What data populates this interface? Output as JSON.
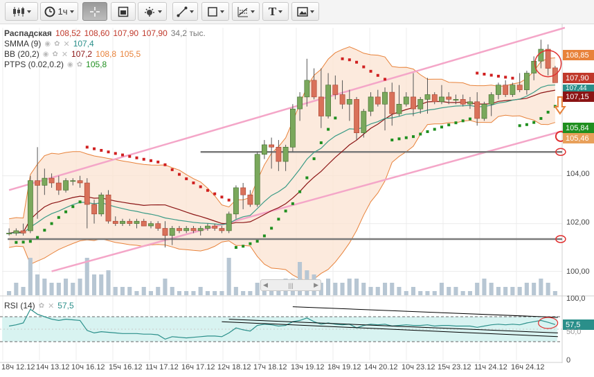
{
  "toolbar": {
    "buttons": [
      {
        "id": "chart-type",
        "icon": "candlestick-icon",
        "label": ""
      },
      {
        "id": "interval",
        "icon": "clock-icon",
        "label": "1ч"
      },
      {
        "id": "crosshair",
        "icon": "crosshair-icon",
        "label": ""
      },
      {
        "id": "chart-area",
        "icon": "area-icon",
        "label": ""
      },
      {
        "id": "indicators",
        "icon": "indicators-icon",
        "label": ""
      },
      {
        "id": "draw-line",
        "icon": "line-tool-icon",
        "label": ""
      },
      {
        "id": "draw-shape",
        "icon": "shape-tool-icon",
        "label": ""
      },
      {
        "id": "draw-fib",
        "icon": "fibonacci-icon",
        "label": ""
      },
      {
        "id": "draw-text",
        "icon": "text-tool-icon",
        "label": "T"
      },
      {
        "id": "snapshot",
        "icon": "image-icon",
        "label": ""
      }
    ]
  },
  "legend": {
    "main": {
      "name": "Распадская",
      "open": "108,52",
      "high": "108,60",
      "low": "107,90",
      "close": "107,90",
      "volume": "34,2 тыс."
    },
    "smma": {
      "name": "SMMA (9)",
      "value": "107,4"
    },
    "bb": {
      "name": "BB (20,2)",
      "v1": "107,2",
      "v2": "108,8",
      "v3": "105,5"
    },
    "ptps": {
      "name": "PTPS (0.02,0.2)",
      "value": "105,8"
    },
    "rsi": {
      "name": "RSI (14)",
      "value": "57,5"
    }
  },
  "price_tags": [
    {
      "label": "108,85",
      "color": "#e8823a"
    },
    {
      "label": "107,90",
      "color": "#c0392b"
    },
    {
      "label": "107,44",
      "color": "#2a8f8a"
    },
    {
      "label": "107,15",
      "color": "#8b1414"
    },
    {
      "label": "105,84",
      "color": "#1f8f1f"
    },
    {
      "label": "105,46",
      "color": "#e8a05a"
    },
    {
      "label": "57,5",
      "color": "#2a8f8a"
    }
  ],
  "chart_data": {
    "type": "candlestick",
    "ylim": [
      99.0,
      110.2
    ],
    "y_ticks": [
      "104,00",
      "102,00",
      "100,00"
    ],
    "rsi_ticks": [
      "100,0",
      "50,0",
      "0"
    ],
    "rsi_ylim": [
      0,
      100
    ],
    "x_tick_labels": [
      "18ч 12.12",
      "14ч 13.12",
      "10ч 16.12",
      "15ч 16.12",
      "11ч 17.12",
      "16ч 17.12",
      "12ч 18.12",
      "17ч 18.12",
      "13ч 19.12",
      "18ч 19.12",
      "14ч 20.12",
      "10ч 23.12",
      "15ч 23.12",
      "11ч 24.12",
      "16ч 24.12"
    ],
    "candles": [
      {
        "o": 101.6,
        "h": 101.8,
        "l": 101.5,
        "c": 101.6
      },
      {
        "o": 101.6,
        "h": 101.8,
        "l": 101.5,
        "c": 101.7
      },
      {
        "o": 101.7,
        "h": 102.0,
        "l": 101.5,
        "c": 101.6
      },
      {
        "o": 101.7,
        "h": 104.0,
        "l": 101.6,
        "c": 103.8
      },
      {
        "o": 103.8,
        "h": 105.2,
        "l": 102.2,
        "c": 103.6
      },
      {
        "o": 103.6,
        "h": 104.3,
        "l": 103.2,
        "c": 103.9
      },
      {
        "o": 103.9,
        "h": 104.1,
        "l": 103.5,
        "c": 103.7
      },
      {
        "o": 103.7,
        "h": 104.0,
        "l": 103.2,
        "c": 103.4
      },
      {
        "o": 103.4,
        "h": 103.9,
        "l": 103.3,
        "c": 103.8
      },
      {
        "o": 103.8,
        "h": 103.9,
        "l": 103.6,
        "c": 103.8
      },
      {
        "o": 103.8,
        "h": 104.0,
        "l": 103.5,
        "c": 103.7
      },
      {
        "o": 103.7,
        "h": 103.9,
        "l": 101.8,
        "c": 102.8
      },
      {
        "o": 102.8,
        "h": 103.0,
        "l": 102.0,
        "c": 102.4
      },
      {
        "o": 102.4,
        "h": 103.3,
        "l": 102.3,
        "c": 103.2
      },
      {
        "o": 103.2,
        "h": 103.4,
        "l": 102.0,
        "c": 102.1
      },
      {
        "o": 102.1,
        "h": 102.3,
        "l": 101.9,
        "c": 102.0
      },
      {
        "o": 102.0,
        "h": 102.2,
        "l": 101.9,
        "c": 102.1
      },
      {
        "o": 102.1,
        "h": 102.2,
        "l": 101.9,
        "c": 102.0
      },
      {
        "o": 102.0,
        "h": 102.2,
        "l": 101.8,
        "c": 102.1
      },
      {
        "o": 102.1,
        "h": 102.2,
        "l": 101.9,
        "c": 101.9
      },
      {
        "o": 101.9,
        "h": 102.1,
        "l": 101.8,
        "c": 102.0
      },
      {
        "o": 102.0,
        "h": 102.1,
        "l": 101.7,
        "c": 101.8
      },
      {
        "o": 101.8,
        "h": 102.1,
        "l": 101.0,
        "c": 101.5
      },
      {
        "o": 101.5,
        "h": 101.9,
        "l": 101.1,
        "c": 101.8
      },
      {
        "o": 101.8,
        "h": 101.9,
        "l": 101.6,
        "c": 101.7
      },
      {
        "o": 101.7,
        "h": 101.9,
        "l": 101.6,
        "c": 101.8
      },
      {
        "o": 101.8,
        "h": 101.9,
        "l": 101.6,
        "c": 101.7
      },
      {
        "o": 101.7,
        "h": 101.9,
        "l": 101.5,
        "c": 101.8
      },
      {
        "o": 101.8,
        "h": 102.0,
        "l": 101.7,
        "c": 101.9
      },
      {
        "o": 101.9,
        "h": 102.0,
        "l": 101.7,
        "c": 101.8
      },
      {
        "o": 101.8,
        "h": 101.9,
        "l": 101.6,
        "c": 101.7
      },
      {
        "o": 101.7,
        "h": 102.5,
        "l": 101.6,
        "c": 102.4
      },
      {
        "o": 102.4,
        "h": 103.6,
        "l": 102.2,
        "c": 103.5
      },
      {
        "o": 103.5,
        "h": 103.7,
        "l": 102.6,
        "c": 103.2
      },
      {
        "o": 103.2,
        "h": 103.4,
        "l": 102.7,
        "c": 102.8
      },
      {
        "o": 102.8,
        "h": 105.0,
        "l": 102.7,
        "c": 104.9
      },
      {
        "o": 104.9,
        "h": 105.5,
        "l": 104.7,
        "c": 105.3
      },
      {
        "o": 105.3,
        "h": 105.6,
        "l": 104.3,
        "c": 105.2
      },
      {
        "o": 105.2,
        "h": 105.5,
        "l": 104.2,
        "c": 104.6
      },
      {
        "o": 104.6,
        "h": 105.3,
        "l": 104.2,
        "c": 105.2
      },
      {
        "o": 105.2,
        "h": 107.0,
        "l": 105.0,
        "c": 106.8
      },
      {
        "o": 106.8,
        "h": 107.5,
        "l": 106.3,
        "c": 107.3
      },
      {
        "o": 107.3,
        "h": 108.9,
        "l": 106.9,
        "c": 108.0
      },
      {
        "o": 108.0,
        "h": 108.5,
        "l": 107.2,
        "c": 107.3
      },
      {
        "o": 107.3,
        "h": 108.5,
        "l": 106.0,
        "c": 106.5
      },
      {
        "o": 106.5,
        "h": 108.3,
        "l": 106.4,
        "c": 107.8
      },
      {
        "o": 107.8,
        "h": 108.2,
        "l": 107.2,
        "c": 107.4
      },
      {
        "o": 107.4,
        "h": 108.0,
        "l": 106.8,
        "c": 107.0
      },
      {
        "o": 107.0,
        "h": 107.6,
        "l": 106.3,
        "c": 107.2
      },
      {
        "o": 107.2,
        "h": 107.3,
        "l": 105.5,
        "c": 105.8
      },
      {
        "o": 105.8,
        "h": 106.8,
        "l": 105.6,
        "c": 106.7
      },
      {
        "o": 106.7,
        "h": 107.5,
        "l": 106.5,
        "c": 107.3
      },
      {
        "o": 107.3,
        "h": 107.6,
        "l": 106.9,
        "c": 107.0
      },
      {
        "o": 107.0,
        "h": 107.7,
        "l": 105.9,
        "c": 107.5
      },
      {
        "o": 107.5,
        "h": 107.9,
        "l": 106.1,
        "c": 106.6
      },
      {
        "o": 106.6,
        "h": 107.8,
        "l": 106.5,
        "c": 107.0
      },
      {
        "o": 107.0,
        "h": 107.5,
        "l": 106.9,
        "c": 107.3
      },
      {
        "o": 107.3,
        "h": 108.3,
        "l": 106.5,
        "c": 106.8
      },
      {
        "o": 106.8,
        "h": 107.3,
        "l": 106.6,
        "c": 107.2
      },
      {
        "o": 107.2,
        "h": 108.1,
        "l": 106.6,
        "c": 107.4
      },
      {
        "o": 107.4,
        "h": 107.5,
        "l": 107.0,
        "c": 107.1
      },
      {
        "o": 107.1,
        "h": 107.8,
        "l": 107.0,
        "c": 107.3
      },
      {
        "o": 107.3,
        "h": 107.5,
        "l": 107.0,
        "c": 107.2
      },
      {
        "o": 107.2,
        "h": 107.4,
        "l": 107.0,
        "c": 107.2
      },
      {
        "o": 107.2,
        "h": 107.4,
        "l": 106.9,
        "c": 107.0
      },
      {
        "o": 107.0,
        "h": 107.3,
        "l": 106.8,
        "c": 107.1
      },
      {
        "o": 107.1,
        "h": 107.5,
        "l": 106.1,
        "c": 106.4
      },
      {
        "o": 106.4,
        "h": 107.1,
        "l": 106.3,
        "c": 107.0
      },
      {
        "o": 107.0,
        "h": 107.5,
        "l": 106.5,
        "c": 107.4
      },
      {
        "o": 107.4,
        "h": 107.9,
        "l": 107.2,
        "c": 107.8
      },
      {
        "o": 107.8,
        "h": 108.0,
        "l": 107.3,
        "c": 107.4
      },
      {
        "o": 107.4,
        "h": 107.9,
        "l": 107.3,
        "c": 107.8
      },
      {
        "o": 107.8,
        "h": 108.3,
        "l": 107.5,
        "c": 107.6
      },
      {
        "o": 107.6,
        "h": 108.4,
        "l": 107.4,
        "c": 108.3
      },
      {
        "o": 108.3,
        "h": 109.0,
        "l": 108.0,
        "c": 108.8
      },
      {
        "o": 108.8,
        "h": 109.7,
        "l": 108.5,
        "c": 109.3
      },
      {
        "o": 109.3,
        "h": 109.5,
        "l": 108.2,
        "c": 108.5
      },
      {
        "o": 108.52,
        "h": 108.6,
        "l": 107.9,
        "c": 107.9
      }
    ],
    "volume_fraction": [
      0.1,
      0.3,
      0.2,
      0.9,
      0.5,
      0.4,
      0.3,
      0.3,
      0.4,
      0.3,
      0.4,
      0.9,
      0.5,
      0.5,
      0.6,
      0.2,
      0.2,
      0.2,
      0.1,
      0.2,
      0.1,
      0.2,
      0.4,
      0.2,
      0.1,
      0.1,
      0.1,
      0.2,
      0.1,
      0.1,
      0.1,
      0.9,
      0.2,
      0.1,
      0.1,
      0.3,
      0.2,
      0.3,
      0.3,
      0.4,
      0.4,
      0.8,
      0.6,
      0.5,
      0.3,
      0.4,
      0.3,
      0.3,
      0.4,
      0.4,
      0.3,
      0.2,
      0.2,
      0.3,
      0.3,
      0.2,
      0.1,
      0.2,
      0.1,
      0.1,
      0.1,
      0.3,
      0.2,
      0.2,
      0.1,
      0.1,
      0.3,
      0.4,
      0.3,
      0.2,
      0.2,
      0.2,
      0.2,
      0.3,
      0.3,
      0.4,
      0.3,
      0.1
    ],
    "rsi_values": [
      55,
      57,
      60,
      82,
      74,
      70,
      66,
      64,
      66,
      65,
      64,
      48,
      44,
      46,
      45,
      44,
      43,
      43,
      43,
      42,
      42,
      41,
      34,
      38,
      37,
      36,
      37,
      38,
      39,
      39,
      38,
      44,
      52,
      49,
      47,
      56,
      58,
      57,
      55,
      56,
      62,
      64,
      68,
      62,
      58,
      60,
      58,
      57,
      58,
      52,
      56,
      58,
      57,
      58,
      55,
      56,
      57,
      56,
      56,
      57,
      55,
      56,
      56,
      55,
      55,
      55,
      53,
      55,
      57,
      58,
      57,
      58,
      57,
      60,
      62,
      64,
      61,
      57.5
    ],
    "rsi_levels": [
      70,
      30
    ],
    "horizontal_levels": [
      105.0,
      101.35
    ],
    "trend_channel_upper": [
      [
        0,
        103.4
      ],
      [
        77,
        110.2
      ]
    ],
    "trend_channel_lower": [
      [
        6,
        100.0
      ],
      [
        77,
        105.9
      ]
    ]
  }
}
